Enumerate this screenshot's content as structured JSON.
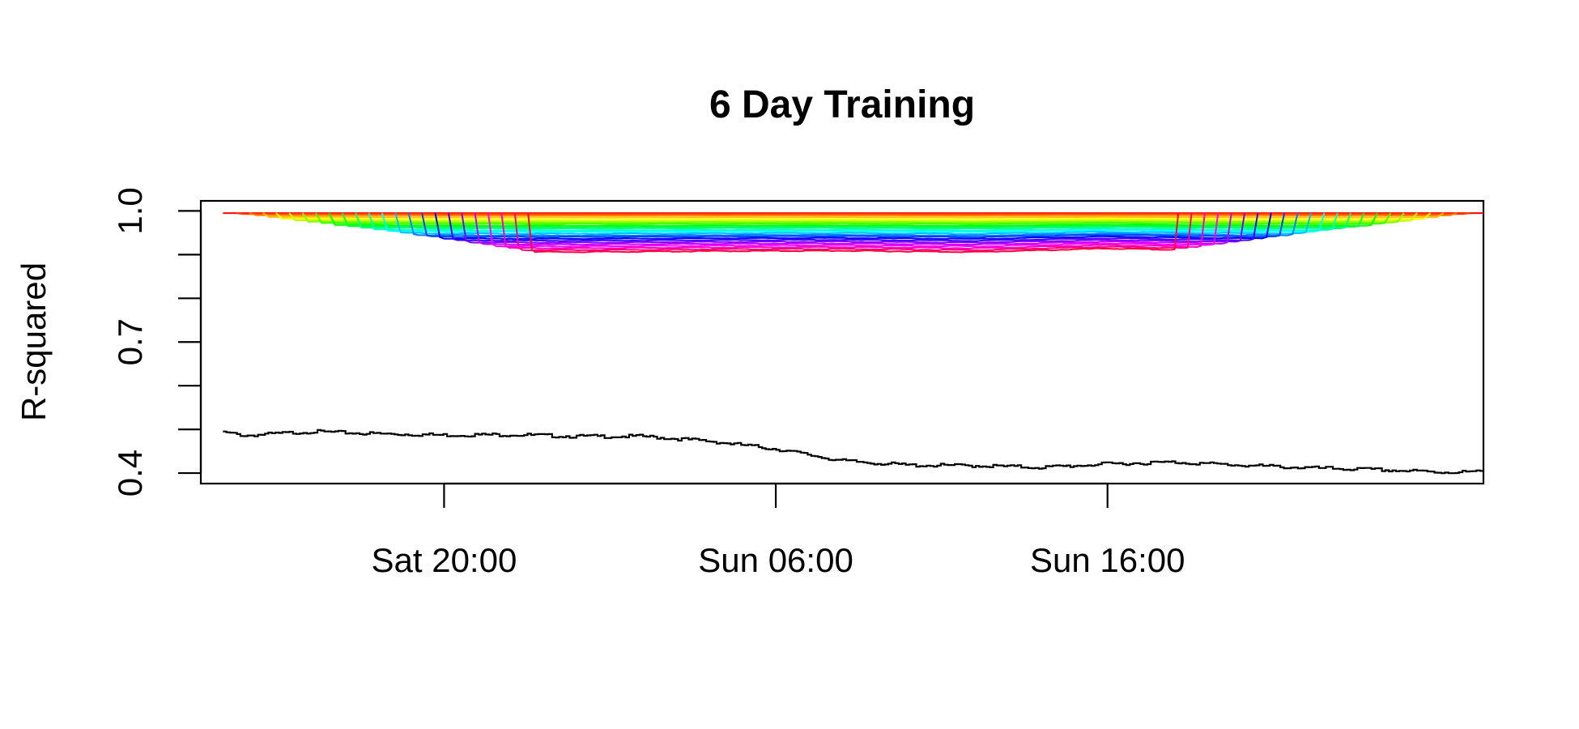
{
  "chart_data": {
    "type": "line",
    "title": "6 Day Training",
    "xlabel": "",
    "ylabel": "R-squared",
    "x_ticks": [
      "Sat 20:00",
      "Sun 06:00",
      "Sun 16:00"
    ],
    "y_ticks": [
      "0.4",
      "0.7",
      "1.0"
    ],
    "y_ticks_unlabeled": [
      0.5,
      0.6,
      0.8,
      0.9
    ],
    "xlim": [
      "Sat 12:40",
      "Mon 03:20"
    ],
    "x_first": "Sat 13:20",
    "x_last": "Mon 03:20",
    "ylim": [
      0.376,
      1.023
    ],
    "grid": false,
    "legend": "none",
    "black_series": {
      "color": "#000000",
      "x": [
        "Sat 13:20",
        "Sat 14:00",
        "Sat 16:00",
        "Sat 18:00",
        "Sat 20:00",
        "Sat 22:00",
        "Sun 00:00",
        "Sun 02:00",
        "Sun 04:00",
        "Sun 06:00",
        "Sun 08:00",
        "Sun 10:00",
        "Sun 12:00",
        "Sun 14:00",
        "Sun 16:00",
        "Sun 18:00",
        "Sun 20:00",
        "Sun 22:00",
        "Mon 00:00",
        "Mon 02:00",
        "Mon 03:20"
      ],
      "values": [
        0.495,
        0.488,
        0.497,
        0.492,
        0.489,
        0.49,
        0.486,
        0.486,
        0.475,
        0.457,
        0.43,
        0.42,
        0.419,
        0.415,
        0.423,
        0.427,
        0.42,
        0.414,
        0.41,
        0.404,
        0.405
      ]
    },
    "rainbow_series": {
      "colors": [
        "#ff0000",
        "#ff4000",
        "#ff8000",
        "#ffbf00",
        "#ffff00",
        "#bfff00",
        "#80ff00",
        "#40ff00",
        "#00ff00",
        "#00ff40",
        "#00ff80",
        "#00ffbf",
        "#00ffff",
        "#00bfff",
        "#0080ff",
        "#0040ff",
        "#0000ff",
        "#4000ff",
        "#8000ff",
        "#bf00ff",
        "#ff00ff",
        "#ff00bf",
        "#ff0080",
        "#ff0040"
      ],
      "x_start": "Sat 13:20",
      "x_end": "Mon 03:20",
      "start_levels": [
        0.995,
        0.993,
        0.99,
        0.986,
        0.982,
        0.978,
        0.975,
        0.972,
        0.968,
        0.965,
        0.962,
        0.958,
        0.955,
        0.951,
        0.947,
        0.944,
        0.94,
        0.936,
        0.932,
        0.928,
        0.924,
        0.92,
        0.916,
        0.912
      ],
      "stagger_hours": 0.4,
      "wave": {
        "x": [
          "Sat 13:20",
          "Sat 16:00",
          "Sat 20:00",
          "Sun 00:00",
          "Sun 04:00",
          "Sun 08:00",
          "Sun 12:00",
          "Sun 16:00",
          "Sun 20:00",
          "Mon 00:00",
          "Mon 03:20"
        ],
        "offset": [
          0.0,
          0.003,
          -0.005,
          -0.006,
          -0.004,
          -0.003,
          -0.006,
          0.002,
          -0.004,
          -0.005,
          -0.006
        ]
      }
    }
  }
}
